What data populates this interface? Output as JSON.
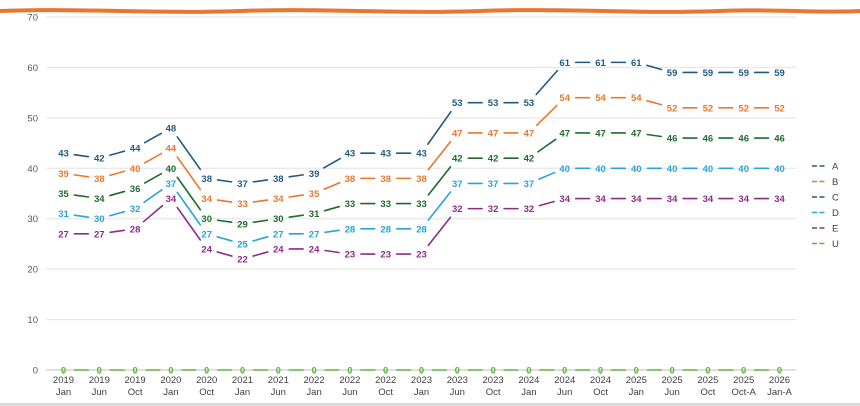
{
  "chart_data": {
    "type": "line",
    "title": "",
    "xlabel": "",
    "ylabel": "",
    "ylim": [
      0,
      70
    ],
    "yticks": [
      0,
      10,
      20,
      30,
      40,
      50,
      60,
      70
    ],
    "grid": true,
    "legend_position": "right",
    "categories": [
      [
        "2019",
        "Jan"
      ],
      [
        "2019",
        "Jun"
      ],
      [
        "2019",
        "Oct"
      ],
      [
        "2020",
        "Jan"
      ],
      [
        "2020",
        "Oct"
      ],
      [
        "2021",
        "Jan"
      ],
      [
        "2021",
        "Jun"
      ],
      [
        "2022",
        "Jan"
      ],
      [
        "2022",
        "Jun"
      ],
      [
        "2022",
        "Oct"
      ],
      [
        "2023",
        "Jan"
      ],
      [
        "2023",
        "Jun"
      ],
      [
        "2023",
        "Oct"
      ],
      [
        "2024",
        "Jan"
      ],
      [
        "2024",
        "Jun"
      ],
      [
        "2024",
        "Oct"
      ],
      [
        "2025",
        "Jan"
      ],
      [
        "2025",
        "Jun"
      ],
      [
        "2025",
        "Oct"
      ],
      [
        "2025",
        "Oct-A"
      ],
      [
        "2026",
        "Jan-A"
      ]
    ],
    "series": [
      {
        "name": "A",
        "color": "#1f5a82",
        "values": [
          43,
          42,
          44,
          48,
          38,
          37,
          38,
          39,
          43,
          43,
          43,
          53,
          53,
          53,
          61,
          61,
          61,
          59,
          59,
          59,
          59
        ]
      },
      {
        "name": "B",
        "color": "#e8782e",
        "values": [
          39,
          38,
          40,
          44,
          34,
          33,
          34,
          35,
          38,
          38,
          38,
          47,
          47,
          47,
          54,
          54,
          54,
          52,
          52,
          52,
          52
        ]
      },
      {
        "name": "C",
        "color": "#1e6b2c",
        "values": [
          35,
          34,
          36,
          40,
          30,
          29,
          30,
          31,
          33,
          33,
          33,
          42,
          42,
          42,
          47,
          47,
          47,
          46,
          46,
          46,
          46
        ]
      },
      {
        "name": "D",
        "color": "#2aa3d6",
        "values": [
          31,
          30,
          32,
          37,
          27,
          25,
          27,
          27,
          28,
          28,
          28,
          37,
          37,
          37,
          40,
          40,
          40,
          40,
          40,
          40,
          40
        ]
      },
      {
        "name": "E",
        "color": "#8f2b8c",
        "values": [
          27,
          27,
          28,
          34,
          24,
          22,
          24,
          24,
          23,
          23,
          23,
          32,
          32,
          32,
          34,
          34,
          34,
          34,
          34,
          34,
          34
        ]
      },
      {
        "name": "U",
        "color": "#5cb83c",
        "values": [
          0,
          0,
          0,
          0,
          0,
          0,
          0,
          0,
          0,
          0,
          0,
          0,
          0,
          0,
          0,
          0,
          0,
          0,
          0,
          0,
          0
        ]
      }
    ]
  }
}
